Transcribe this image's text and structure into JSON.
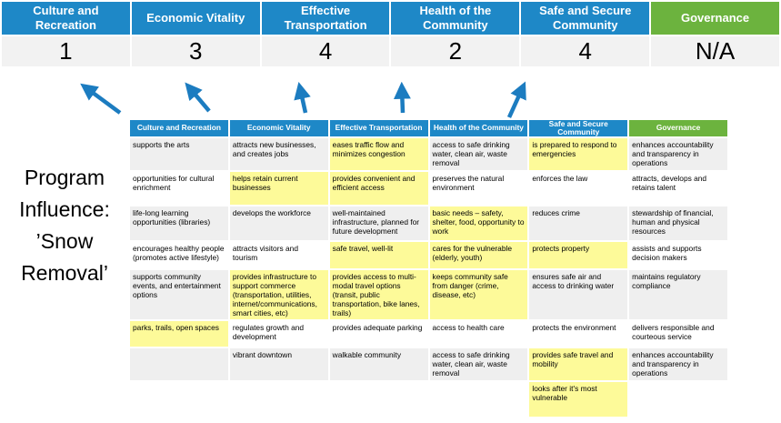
{
  "colors": {
    "blue": "#1E88C7",
    "green": "#6CB33E",
    "highlight_yellow": "#FDFA99",
    "stripe_gray": "#EFEFEF",
    "score_row_gray": "#F2F2F2",
    "arrow_blue": "#1C7CC0"
  },
  "title": {
    "line1": "Program Influence:",
    "line2": "’Snow Removal’"
  },
  "pillar_band": {
    "pillars": [
      {
        "label": "Culture and Recreation",
        "score": "1",
        "accent": "blue"
      },
      {
        "label": "Economic Vitality",
        "score": "3",
        "accent": "blue"
      },
      {
        "label": "Effective Transportation",
        "score": "4",
        "accent": "blue"
      },
      {
        "label": "Health of the Community",
        "score": "2",
        "accent": "blue"
      },
      {
        "label": "Safe and Secure Community",
        "score": "4",
        "accent": "blue"
      },
      {
        "label": "Governance",
        "score": "N/A",
        "accent": "green"
      }
    ]
  },
  "matrix": {
    "headers": [
      {
        "label": "Culture and Recreation",
        "accent": "blue"
      },
      {
        "label": "Economic Vitality",
        "accent": "blue"
      },
      {
        "label": "Effective Transportation",
        "accent": "blue"
      },
      {
        "label": "Health of the Community",
        "accent": "blue"
      },
      {
        "label": "Safe and Secure Community",
        "accent": "blue"
      },
      {
        "label": "Governance",
        "accent": "green"
      }
    ],
    "rows": [
      {
        "stripe": "gray",
        "cells": [
          {
            "text": "supports the arts",
            "highlight": false
          },
          {
            "text": "attracts new businesses, and creates jobs",
            "highlight": false
          },
          {
            "text": "eases traffic flow and minimizes congestion",
            "highlight": true
          },
          {
            "text": "access to safe drinking water, clean air, waste removal",
            "highlight": false
          },
          {
            "text": "is prepared to respond to emergencies",
            "highlight": true
          },
          {
            "text": "enhances accountability and transparency in operations",
            "highlight": false
          }
        ]
      },
      {
        "stripe": "white",
        "cells": [
          {
            "text": "opportunities for cultural enrichment",
            "highlight": false
          },
          {
            "text": "helps retain current businesses",
            "highlight": true
          },
          {
            "text": "provides convenient and efficient access",
            "highlight": true
          },
          {
            "text": "preserves the natural environment",
            "highlight": false
          },
          {
            "text": "enforces the law",
            "highlight": false
          },
          {
            "text": "attracts, develops and retains talent",
            "highlight": false
          }
        ]
      },
      {
        "stripe": "gray",
        "cells": [
          {
            "text": "life-long learning opportunities (libraries)",
            "highlight": false
          },
          {
            "text": "develops the workforce",
            "highlight": false
          },
          {
            "text": "well-maintained infrastructure, planned for future development",
            "highlight": false
          },
          {
            "text": "basic needs – safety, shelter, food, opportunity to work",
            "highlight": true
          },
          {
            "text": "reduces crime",
            "highlight": false
          },
          {
            "text": "stewardship of financial, human and physical resources",
            "highlight": false
          }
        ]
      },
      {
        "stripe": "white",
        "cells": [
          {
            "text": "encourages healthy people (promotes active lifestyle)",
            "highlight": false
          },
          {
            "text": "attracts visitors and tourism",
            "highlight": false
          },
          {
            "text": "safe travel, well-lit",
            "highlight": true
          },
          {
            "text": "cares for the vulnerable (elderly, youth)",
            "highlight": true
          },
          {
            "text": "protects property",
            "highlight": true
          },
          {
            "text": "assists and supports decision makers",
            "highlight": false
          }
        ]
      },
      {
        "stripe": "gray",
        "cells": [
          {
            "text": "supports community events, and entertainment options",
            "highlight": false
          },
          {
            "text": "provides infrastructure to support commerce (transportation, utilities, internet/communications, smart cities, etc)",
            "highlight": true
          },
          {
            "text": "provides access to multi-modal travel options (transit, public transportation, bike lanes, trails)",
            "highlight": true
          },
          {
            "text": "keeps community safe from danger (crime, disease, etc)",
            "highlight": true
          },
          {
            "text": "ensures safe air and access to drinking water",
            "highlight": false
          },
          {
            "text": "maintains regulatory compliance",
            "highlight": false
          }
        ]
      },
      {
        "stripe": "white",
        "cells": [
          {
            "text": "parks, trails, open spaces",
            "highlight": true
          },
          {
            "text": "regulates growth and development",
            "highlight": false
          },
          {
            "text": "provides adequate parking",
            "highlight": false
          },
          {
            "text": "access to health care",
            "highlight": false
          },
          {
            "text": "protects the environment",
            "highlight": false
          },
          {
            "text": "delivers responsible and courteous service",
            "highlight": false
          }
        ]
      },
      {
        "stripe": "gray",
        "cells": [
          {
            "text": "",
            "highlight": false
          },
          {
            "text": "vibrant downtown",
            "highlight": false
          },
          {
            "text": "walkable community",
            "highlight": false
          },
          {
            "text": "access to safe drinking water, clean air, waste removal",
            "highlight": false
          },
          {
            "text": "provides safe travel and mobility",
            "highlight": true
          },
          {
            "text": "enhances accountability and transparency in operations",
            "highlight": false
          }
        ]
      },
      {
        "stripe": "white",
        "cells": [
          {
            "text": "",
            "highlight": false
          },
          {
            "text": "",
            "highlight": false
          },
          {
            "text": "",
            "highlight": false
          },
          {
            "text": "",
            "highlight": false
          },
          {
            "text": "looks after it's most vulnerable",
            "highlight": true
          },
          {
            "text": "",
            "highlight": false
          }
        ]
      }
    ]
  }
}
